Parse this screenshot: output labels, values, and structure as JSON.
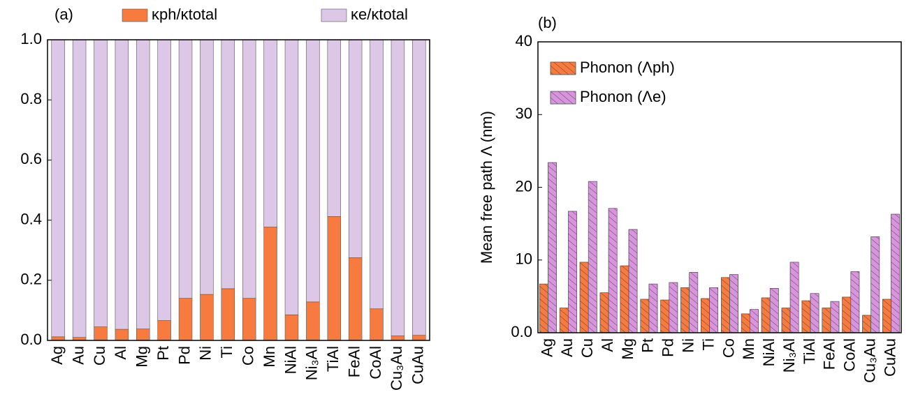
{
  "chart_data": [
    {
      "type": "bar",
      "stacked": true,
      "title": "(a)",
      "categories": [
        "Ag",
        "Au",
        "Cu",
        "Al",
        "Mg",
        "Pt",
        "Pd",
        "Ni",
        "Ti",
        "Co",
        "Mn",
        "NiAl",
        "Ni₃Al",
        "TiAl",
        "FeAl",
        "CoAl",
        "Cu₃Au",
        "CuAu"
      ],
      "series": [
        {
          "name": "κph/κtotal",
          "color": "#f77b3f",
          "values": [
            0.012,
            0.01,
            0.045,
            0.037,
            0.038,
            0.066,
            0.14,
            0.153,
            0.172,
            0.14,
            0.377,
            0.085,
            0.128,
            0.412,
            0.275,
            0.105,
            0.015,
            0.017
          ]
        },
        {
          "name": "κe/κtotal",
          "color": "#dcc8e6",
          "values": [
            0.988,
            0.99,
            0.955,
            0.963,
            0.962,
            0.934,
            0.86,
            0.847,
            0.828,
            0.86,
            0.623,
            0.915,
            0.872,
            0.588,
            0.725,
            0.895,
            0.985,
            0.983
          ]
        }
      ],
      "ylim": [
        0,
        1
      ],
      "yticks": [
        {
          "value": 0,
          "label": "0.0"
        },
        {
          "value": 0.2,
          "label": "0.2"
        },
        {
          "value": 0.4,
          "label": "0.4"
        },
        {
          "value": 0.6,
          "label": "0.6"
        },
        {
          "value": 0.8,
          "label": "0.8"
        },
        {
          "value": 1,
          "label": "1.0"
        }
      ]
    },
    {
      "type": "bar",
      "stacked": false,
      "hatch": true,
      "title": "(b)",
      "ylabel": "Mean free path Λ (nm)",
      "categories": [
        "Ag",
        "Au",
        "Cu",
        "Al",
        "Mg",
        "Pt",
        "Pd",
        "Ni",
        "Ti",
        "Co",
        "Mn",
        "NiAl",
        "Ni₃Al",
        "TiAl",
        "FeAl",
        "CoAl",
        "Cu₃Au",
        "CuAu"
      ],
      "series": [
        {
          "name": "Phonon (Λph)",
          "color": "#f77b3f",
          "values": [
            6.7,
            3.4,
            9.7,
            5.5,
            9.2,
            4.6,
            4.5,
            6.2,
            4.7,
            7.6,
            2.6,
            4.8,
            3.4,
            4.4,
            3.4,
            4.9,
            2.4,
            4.6
          ]
        },
        {
          "name": "Phonon (Λe)",
          "color": "#d894dd",
          "values": [
            23.4,
            16.7,
            20.8,
            17.1,
            14.2,
            6.7,
            6.9,
            8.3,
            6.2,
            8.0,
            3.2,
            6.1,
            9.7,
            5.4,
            4.3,
            8.4,
            13.2,
            16.3
          ]
        }
      ],
      "ylim": [
        0,
        40
      ],
      "yticks": [
        {
          "value": 0,
          "label": "0.0"
        },
        10,
        20,
        30,
        40
      ],
      "legend": "upper left"
    }
  ]
}
